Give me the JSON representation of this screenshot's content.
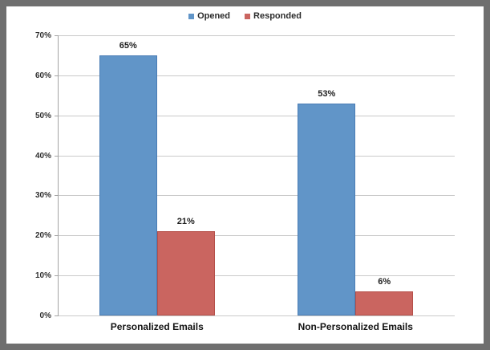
{
  "frame": {
    "border_color": "#6f6f6f",
    "background_color": "#ffffff"
  },
  "legend": {
    "position": "top-center",
    "items": [
      {
        "label": "Opened",
        "color": "#6195C8",
        "border_color": "#4A7DB5"
      },
      {
        "label": "Responded",
        "color": "#CA6560",
        "border_color": "#B54F49"
      }
    ]
  },
  "chart_data": {
    "type": "bar",
    "title": "",
    "xlabel": "",
    "ylabel": "",
    "categories": [
      "Personalized Emails",
      "Non-Personalized Emails"
    ],
    "series": [
      {
        "name": "Opened",
        "values": [
          65,
          53
        ],
        "color": "#6195C8",
        "border_color": "#4A7DB5"
      },
      {
        "name": "Responded",
        "values": [
          21,
          6
        ],
        "color": "#CA6560",
        "border_color": "#B54F49"
      }
    ],
    "data_labels": [
      [
        "65%",
        "53%"
      ],
      [
        "21%",
        "6%"
      ]
    ],
    "ylim": [
      0,
      70
    ],
    "ytick_interval": 10,
    "ytick_labels": [
      "0%",
      "10%",
      "20%",
      "30%",
      "40%",
      "50%",
      "60%",
      "70%"
    ],
    "grid": true,
    "gridline_color": "#c9c9c9",
    "axis_color": "#a3a3a3",
    "legend_position": "top"
  }
}
